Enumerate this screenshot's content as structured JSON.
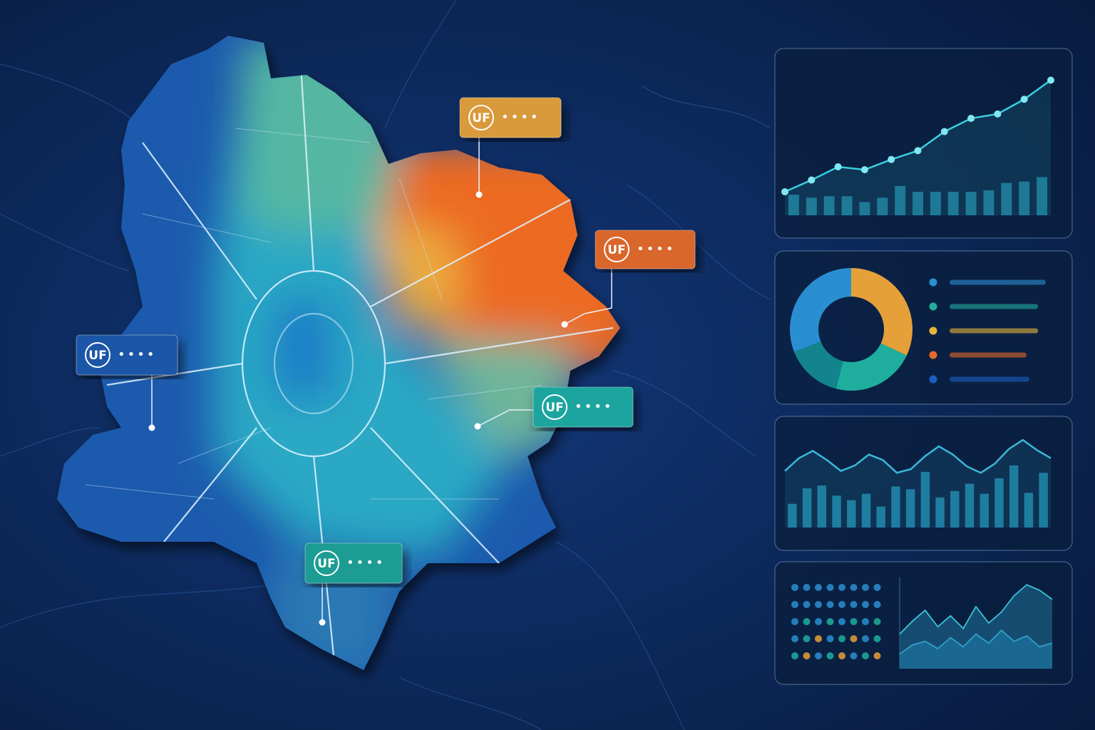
{
  "map": {
    "markers": [
      {
        "label": "UF",
        "text": "••••",
        "color": "#d99a3a"
      },
      {
        "label": "UF",
        "text": "••••",
        "color": "#d9662a"
      },
      {
        "label": "UF",
        "text": "••••",
        "color": "#1d57a8"
      },
      {
        "label": "UF",
        "text": "••••",
        "color": "#1ba59e"
      },
      {
        "label": "UF",
        "text": "••••",
        "color": "#1c9c92"
      }
    ]
  },
  "panels": [
    {
      "type": "line-bar",
      "ylim": [
        0,
        10
      ],
      "line_color": "#3ad0e0",
      "bar_color": "#1e7d9a",
      "line": [
        1.6,
        2.4,
        3.3,
        3.1,
        3.8,
        4.4,
        5.7,
        6.6,
        6.9,
        7.9,
        9.2
      ],
      "bars": [
        1.4,
        1.2,
        1.3,
        1.3,
        0.9,
        1.2,
        2.0,
        1.6,
        1.6,
        1.6,
        1.6,
        1.7,
        2.2,
        2.3,
        2.6
      ]
    },
    {
      "type": "donut",
      "values": [
        32,
        22,
        15,
        31
      ],
      "colors": [
        "#e5a03a",
        "#1fae9e",
        "#13838d",
        "#2a8fd0"
      ],
      "legend_values": [
        100,
        92,
        92,
        80,
        83
      ],
      "legend_colors": [
        "#2a8fd0",
        "#1fae9e",
        "#e5b43a",
        "#e56a2a",
        "#1a5fbf"
      ]
    },
    {
      "type": "line-bar",
      "ylim": [
        0,
        10
      ],
      "line_color": "#3ab8d8",
      "bar_color": "#1e86a8",
      "line": [
        6.2,
        7.6,
        8.4,
        7.4,
        6.2,
        6.8,
        8.0,
        7.4,
        6.0,
        6.4,
        7.8,
        8.9,
        8.0,
        6.7,
        6.0,
        7.0,
        8.6,
        9.6,
        8.5,
        7.6
      ],
      "bars": [
        2.6,
        4.3,
        4.6,
        3.5,
        3.0,
        3.7,
        2.3,
        4.5,
        4.2,
        6.1,
        3.3,
        4.0,
        4.8,
        3.7,
        5.4,
        6.8,
        3.8,
        6.0
      ]
    },
    {
      "type": "dots-area",
      "ylim": [
        0,
        10
      ],
      "colors": [
        "#2a8fd0",
        "#1fae9e",
        "#e5a03a"
      ],
      "area1": [
        3.8,
        5.2,
        6.4,
        4.6,
        5.8,
        4.4,
        6.8,
        5.0,
        6.2,
        8.0,
        9.2,
        8.6,
        7.6
      ],
      "area2": [
        1.6,
        2.6,
        3.0,
        2.2,
        3.4,
        2.4,
        3.8,
        2.8,
        4.2,
        3.0,
        3.6,
        2.4,
        2.8
      ]
    }
  ]
}
